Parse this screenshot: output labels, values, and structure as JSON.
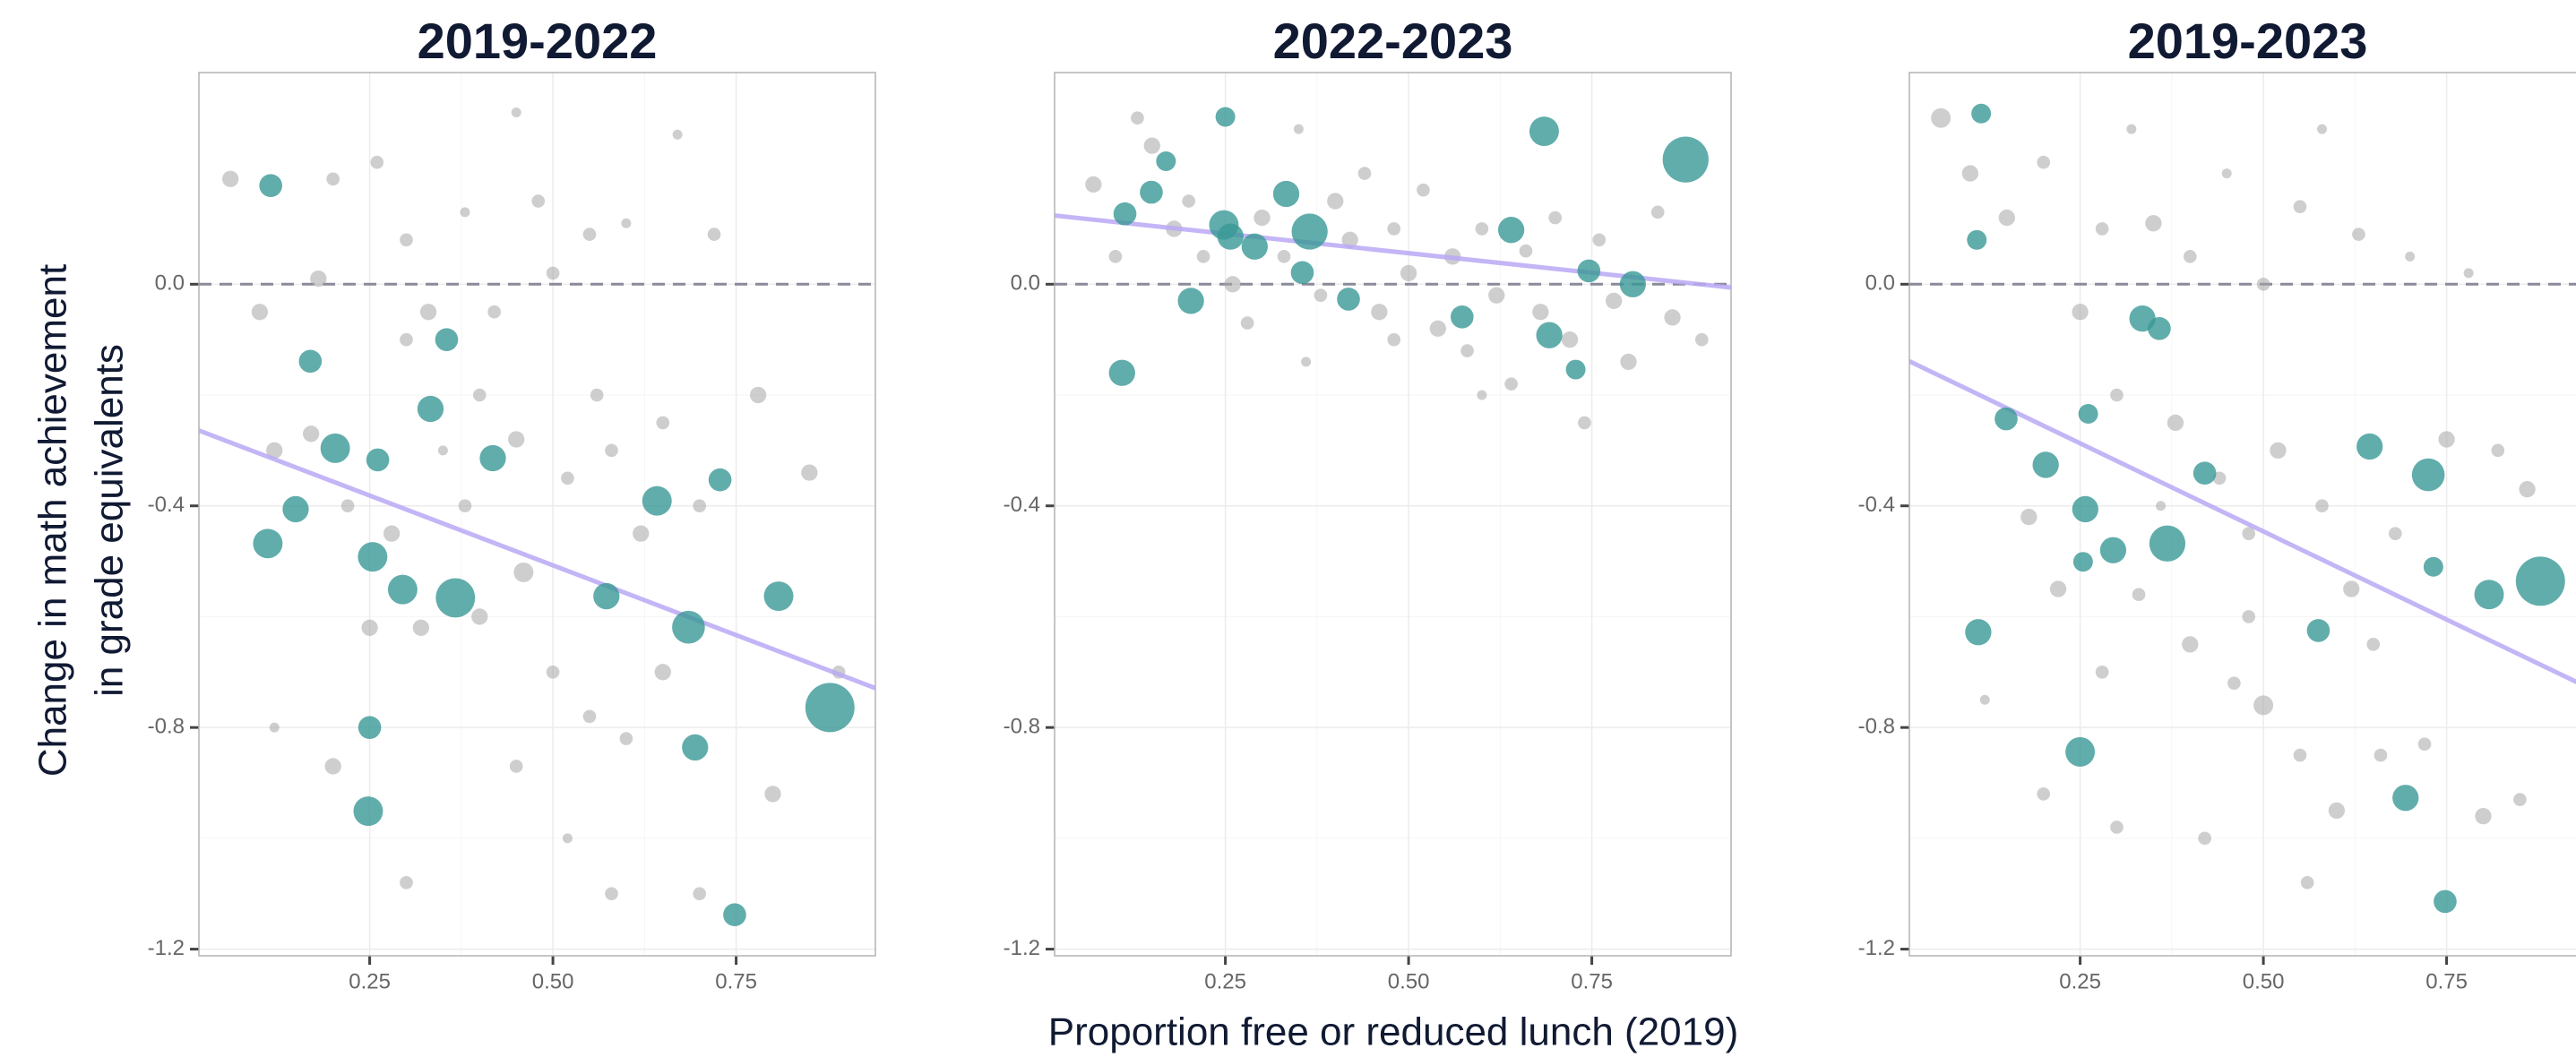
{
  "x_label": "Proportion free or reduced lunch (2019)",
  "y_label": [
    "Change in math achievement",
    "in grade equivalents"
  ],
  "chart_data": [
    {
      "type": "scatter",
      "title": "2019-2022",
      "xlim": [
        0.017,
        0.94
      ],
      "ylim": [
        -1.212,
        0.382
      ],
      "xticks": [
        0.25,
        {
          "value": 0.5,
          "label": "0.50"
        },
        0.75
      ],
      "yticks": [
        -1.2,
        -0.8,
        -0.4,
        {
          "value": 0,
          "label": "0.0"
        }
      ],
      "grid": true,
      "hline": 0,
      "series": [
        {
          "color": "#a6a6a6",
          "x": [
            0.06,
            0.1,
            0.18,
            0.2,
            0.26,
            0.3,
            0.33,
            0.38,
            0.45,
            0.48,
            0.5,
            0.55,
            0.6,
            0.67,
            0.72,
            0.3,
            0.4,
            0.45,
            0.52,
            0.58,
            0.62,
            0.7,
            0.78,
            0.85,
            0.12,
            0.17,
            0.22,
            0.28,
            0.32,
            0.4,
            0.46,
            0.5,
            0.55,
            0.6,
            0.65,
            0.45,
            0.52,
            0.58,
            0.7,
            0.3,
            0.2,
            0.12,
            0.8,
            0.89,
            0.38,
            0.25,
            0.35,
            0.56,
            0.65,
            0.42
          ],
          "values": [
            0.19,
            -0.05,
            0.01,
            0.19,
            0.22,
            0.08,
            -0.05,
            0.13,
            0.31,
            0.15,
            0.02,
            0.09,
            0.11,
            0.27,
            0.09,
            -0.1,
            -0.2,
            -0.28,
            -0.35,
            -0.3,
            -0.45,
            -0.4,
            -0.2,
            -0.34,
            -0.3,
            -0.27,
            -0.4,
            -0.45,
            -0.62,
            -0.6,
            -0.52,
            -0.7,
            -0.78,
            -0.82,
            -0.7,
            -0.87,
            -1.0,
            -1.1,
            -1.1,
            -1.08,
            -0.87,
            -0.8,
            -0.92,
            -0.7,
            -0.4,
            -0.62,
            -0.3,
            -0.2,
            -0.25,
            -0.05
          ],
          "sizes": [
            5,
            5,
            5,
            4,
            4,
            4,
            5,
            3,
            3,
            4,
            4,
            4,
            3,
            3,
            4,
            4,
            4,
            5,
            4,
            4,
            5,
            4,
            5,
            5,
            5,
            5,
            4,
            5,
            5,
            5,
            6,
            4,
            4,
            4,
            5,
            4,
            3,
            4,
            4,
            4,
            5,
            3,
            5,
            4,
            4,
            5,
            3,
            4,
            4,
            4
          ]
        },
        {
          "color": "#3a9896",
          "x": [
            0.115,
            0.169,
            0.355,
            0.203,
            0.261,
            0.333,
            0.418,
            0.149,
            0.111,
            0.254,
            0.295,
            0.367,
            0.573,
            0.642,
            0.728,
            0.808,
            0.685,
            0.878,
            0.25,
            0.694,
            0.248,
            0.748
          ],
          "values": [
            0.178,
            -0.139,
            -0.1,
            -0.296,
            -0.317,
            -0.225,
            -0.314,
            -0.406,
            -0.468,
            -0.492,
            -0.551,
            -0.566,
            -0.563,
            -0.391,
            -0.353,
            -0.563,
            -0.619,
            -0.764,
            -0.8,
            -0.836,
            -0.951,
            -1.138
          ],
          "sizes": [
            7,
            7,
            7,
            9,
            7,
            8,
            8,
            8,
            9,
            9,
            9,
            12,
            8,
            9,
            7,
            9,
            10,
            15,
            7,
            8,
            9,
            7
          ]
        }
      ],
      "trend": {
        "color": "#b8a8f4",
        "x": [
          0.017,
          0.94
        ],
        "values": [
          -0.264,
          -0.729
        ]
      }
    },
    {
      "type": "scatter",
      "title": "2022-2023",
      "xlim": [
        0.017,
        0.94
      ],
      "ylim": [
        -1.212,
        0.382
      ],
      "xticks": [
        0.25,
        {
          "value": 0.5,
          "label": "0.50"
        },
        0.75
      ],
      "yticks": [
        -1.2,
        -0.8,
        -0.4,
        {
          "value": 0,
          "label": "0.0"
        }
      ],
      "grid": true,
      "hline": 0,
      "series": [
        {
          "color": "#a6a6a6",
          "x": [
            0.07,
            0.1,
            0.13,
            0.15,
            0.18,
            0.2,
            0.22,
            0.26,
            0.28,
            0.3,
            0.33,
            0.35,
            0.38,
            0.4,
            0.42,
            0.44,
            0.46,
            0.48,
            0.5,
            0.52,
            0.54,
            0.56,
            0.58,
            0.6,
            0.62,
            0.64,
            0.66,
            0.68,
            0.7,
            0.72,
            0.74,
            0.76,
            0.78,
            0.8,
            0.84,
            0.86,
            0.9,
            0.36,
            0.48,
            0.6
          ],
          "values": [
            0.18,
            0.05,
            0.3,
            0.25,
            0.1,
            0.15,
            0.05,
            0.0,
            -0.07,
            0.12,
            0.05,
            0.28,
            -0.02,
            0.15,
            0.08,
            0.2,
            -0.05,
            0.1,
            0.02,
            0.17,
            -0.08,
            0.05,
            -0.12,
            0.1,
            -0.02,
            -0.18,
            0.06,
            -0.05,
            0.12,
            -0.1,
            -0.25,
            0.08,
            -0.03,
            -0.14,
            0.13,
            -0.06,
            -0.1,
            -0.14,
            -0.1,
            -0.2
          ],
          "sizes": [
            5,
            4,
            4,
            5,
            5,
            4,
            4,
            5,
            4,
            5,
            4,
            3,
            4,
            5,
            5,
            4,
            5,
            4,
            5,
            4,
            5,
            5,
            4,
            4,
            5,
            4,
            4,
            5,
            4,
            5,
            4,
            4,
            5,
            5,
            4,
            5,
            4,
            3,
            4,
            3
          ]
        },
        {
          "color": "#3a9896",
          "x": [
            0.25,
            0.169,
            0.149,
            0.113,
            0.109,
            0.203,
            0.248,
            0.257,
            0.29,
            0.333,
            0.365,
            0.355,
            0.418,
            0.573,
            0.64,
            0.692,
            0.728,
            0.746,
            0.806,
            0.685,
            0.878
          ],
          "values": [
            0.302,
            0.222,
            0.166,
            0.127,
            -0.16,
            -0.03,
            0.107,
            0.086,
            0.068,
            0.163,
            0.095,
            0.021,
            -0.027,
            -0.059,
            0.098,
            -0.092,
            -0.154,
            0.024,
            0,
            0.276,
            0.225
          ],
          "sizes": [
            6,
            6,
            7,
            7,
            8,
            8,
            9,
            8,
            8,
            8,
            11,
            7,
            7,
            7,
            8,
            8,
            6,
            7,
            8,
            9,
            14
          ]
        }
      ],
      "trend": {
        "color": "#b8a8f4",
        "x": [
          0.017,
          0.94
        ],
        "values": [
          0.124,
          -0.006
        ]
      }
    },
    {
      "type": "scatter",
      "title": "2019-2023",
      "xlim": [
        0.017,
        0.94
      ],
      "ylim": [
        -1.212,
        0.382
      ],
      "xticks": [
        0.25,
        {
          "value": 0.5,
          "label": "0.50"
        },
        0.75
      ],
      "yticks": [
        -1.2,
        -0.8,
        -0.4,
        {
          "value": 0,
          "label": "0.0"
        }
      ],
      "grid": true,
      "hline": 0,
      "series": [
        {
          "color": "#a6a6a6",
          "x": [
            0.06,
            0.1,
            0.15,
            0.2,
            0.25,
            0.28,
            0.32,
            0.35,
            0.4,
            0.45,
            0.5,
            0.55,
            0.58,
            0.63,
            0.7,
            0.78,
            0.3,
            0.38,
            0.44,
            0.48,
            0.52,
            0.58,
            0.62,
            0.68,
            0.75,
            0.82,
            0.86,
            0.18,
            0.22,
            0.28,
            0.33,
            0.4,
            0.46,
            0.5,
            0.55,
            0.6,
            0.66,
            0.72,
            0.8,
            0.85,
            0.42,
            0.56,
            0.12,
            0.2,
            0.3,
            0.48,
            0.36,
            0.65
          ],
          "values": [
            0.3,
            0.2,
            0.12,
            0.22,
            -0.05,
            0.1,
            0.28,
            0.11,
            0.05,
            0.2,
            0.0,
            0.14,
            0.28,
            0.09,
            0.05,
            0.02,
            -0.2,
            -0.25,
            -0.35,
            -0.45,
            -0.3,
            -0.4,
            -0.55,
            -0.45,
            -0.28,
            -0.3,
            -0.37,
            -0.42,
            -0.55,
            -0.7,
            -0.56,
            -0.65,
            -0.72,
            -0.76,
            -0.85,
            -0.95,
            -0.85,
            -0.83,
            -0.96,
            -0.93,
            -1.0,
            -1.08,
            -0.75,
            -0.92,
            -0.98,
            -0.6,
            -0.4,
            -0.65
          ],
          "sizes": [
            6,
            5,
            5,
            4,
            5,
            4,
            3,
            5,
            4,
            3,
            4,
            4,
            3,
            4,
            3,
            3,
            4,
            5,
            4,
            4,
            5,
            4,
            5,
            4,
            5,
            4,
            5,
            5,
            5,
            4,
            4,
            5,
            4,
            6,
            4,
            5,
            4,
            4,
            5,
            4,
            4,
            4,
            3,
            4,
            4,
            4,
            3,
            4
          ]
        },
        {
          "color": "#3a9896",
          "x": [
            0.115,
            0.109,
            0.149,
            0.203,
            0.261,
            0.257,
            0.254,
            0.295,
            0.369,
            0.335,
            0.358,
            0.42,
            0.575,
            0.645,
            0.725,
            0.732,
            0.808,
            0.878,
            0.111,
            0.25,
            0.694,
            0.748
          ],
          "values": [
            0.308,
            0.08,
            -0.243,
            -0.326,
            -0.234,
            -0.406,
            -0.501,
            -0.48,
            -0.468,
            -0.062,
            -0.08,
            -0.341,
            -0.625,
            -0.293,
            -0.344,
            -0.51,
            -0.56,
            -0.536,
            -0.628,
            -0.844,
            -0.927,
            -1.114
          ],
          "sizes": [
            6,
            6,
            7,
            8,
            6,
            8,
            6,
            8,
            11,
            8,
            7,
            7,
            7,
            8,
            10,
            6,
            9,
            15,
            8,
            9,
            8,
            7
          ]
        }
      ],
      "trend": {
        "color": "#b8a8f4",
        "x": [
          0.017,
          0.94
        ],
        "values": [
          -0.139,
          -0.726
        ]
      }
    }
  ]
}
